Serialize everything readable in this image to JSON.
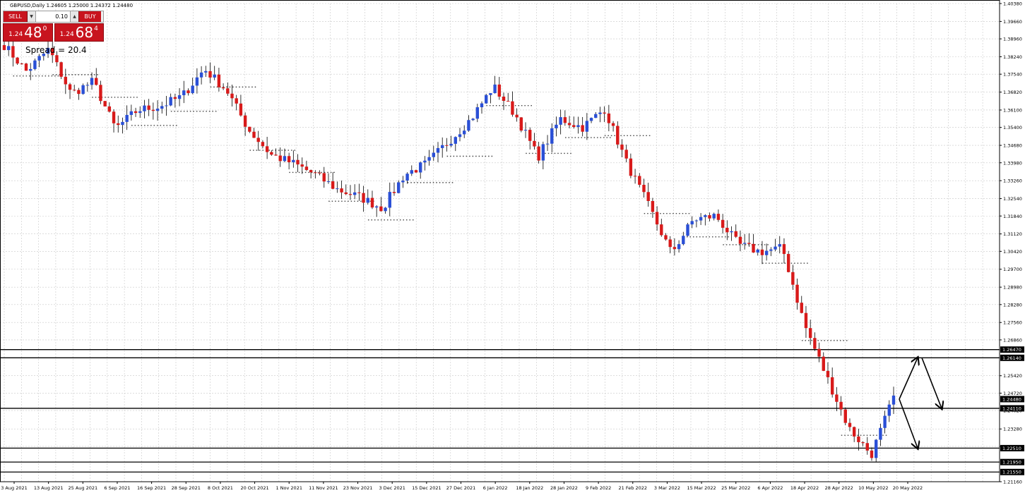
{
  "header": {
    "symbol_text": "GBPUSD,Daily",
    "ohlc_text": "1.24605 1.25000 1.24372 1.24480"
  },
  "trade_panel": {
    "sell_label": "SELL",
    "buy_label": "BUY",
    "lot_value": "0.10",
    "sell_price": {
      "prefix": "1.24",
      "big": "48",
      "sup": "0"
    },
    "buy_price": {
      "prefix": "1.24",
      "big": "68",
      "sup": "4"
    },
    "spread_text": "Spread = 20.4"
  },
  "colors": {
    "bull": "#2a4fd6",
    "bear": "#d81a1a",
    "grid": "#c8c8c8",
    "level_line": "#000000",
    "background": "#ffffff",
    "panel_red": "#c8141e"
  },
  "chart_data": {
    "type": "candlestick",
    "symbol": "GBPUSD",
    "timeframe": "Daily",
    "ylim": [
      1.2116,
      1.4038
    ],
    "y_ticks": [
      "1.40380",
      "1.39660",
      "1.38960",
      "1.38240",
      "1.37540",
      "1.36820",
      "1.36100",
      "1.35400",
      "1.34680",
      "1.33980",
      "1.33260",
      "1.32540",
      "1.31840",
      "1.31120",
      "1.30420",
      "1.29700",
      "1.28980",
      "1.28280",
      "1.27560",
      "1.26860",
      "1.25420",
      "1.24720",
      "1.24020",
      "1.23280",
      "1.22580",
      "1.21160"
    ],
    "x_ticks": [
      "3 Aug 2021",
      "13 Aug 2021",
      "25 Aug 2021",
      "6 Sep 2021",
      "16 Sep 2021",
      "28 Sep 2021",
      "8 Oct 2021",
      "20 Oct 2021",
      "1 Nov 2021",
      "11 Nov 2021",
      "23 Nov 2021",
      "3 Dec 2021",
      "15 Dec 2021",
      "27 Dec 2021",
      "6 Jan 2022",
      "18 Jan 2022",
      "28 Jan 2022",
      "9 Feb 2022",
      "21 Feb 2022",
      "3 Mar 2022",
      "15 Mar 2022",
      "25 Mar 2022",
      "6 Apr 2022",
      "18 Apr 2022",
      "28 Apr 2022",
      "10 May 2022",
      "20 May 2022"
    ],
    "price_labels": [
      {
        "value": 1.2647,
        "text": "1.26470"
      },
      {
        "value": 1.2614,
        "text": "1.26140"
      },
      {
        "value": 1.2448,
        "text": "1.24480"
      },
      {
        "value": 1.2411,
        "text": "1.24110"
      },
      {
        "value": 1.2251,
        "text": "1.22510"
      },
      {
        "value": 1.2195,
        "text": "1.21950"
      },
      {
        "value": 1.2155,
        "text": "1.21550"
      }
    ],
    "horizontal_levels": [
      1.2647,
      1.2614,
      1.2411,
      1.2251,
      1.2195,
      1.2155
    ],
    "key_points": [
      [
        1.3885,
        1.3857
      ],
      [
        1.383,
        1.37
      ],
      [
        1.391,
        1.38
      ],
      [
        1.379,
        1.356
      ],
      [
        1.386,
        1.359
      ],
      [
        1.365,
        1.342
      ],
      [
        1.376,
        1.346
      ],
      [
        1.369,
        1.356
      ],
      [
        1.37,
        1.363
      ],
      [
        1.382,
        1.373
      ],
      [
        1.376,
        1.362
      ],
      [
        1.364,
        1.342
      ],
      [
        1.34,
        1.346
      ],
      [
        1.343,
        1.336
      ],
      [
        1.332,
        1.338
      ],
      [
        1.338,
        1.32
      ],
      [
        1.336,
        1.316
      ],
      [
        1.325,
        1.318
      ],
      [
        1.336,
        1.334
      ],
      [
        1.342,
        1.337
      ],
      [
        1.348,
        1.349
      ],
      [
        1.359,
        1.356
      ],
      [
        1.371,
        1.37
      ],
      [
        1.362,
        1.356
      ],
      [
        1.346,
        1.338
      ],
      [
        1.36,
        1.355
      ],
      [
        1.356,
        1.352
      ],
      [
        1.363,
        1.36
      ],
      [
        1.352,
        1.327
      ],
      [
        1.332,
        1.312
      ],
      [
        1.308,
        1.299
      ],
      [
        1.315,
        1.319
      ],
      [
        1.322,
        1.315
      ],
      [
        1.305,
        1.309
      ],
      [
        1.308,
        1.3
      ],
      [
        1.312,
        1.299
      ],
      [
        1.284,
        1.265
      ],
      [
        1.245,
        1.262
      ],
      [
        1.241,
        1.225
      ],
      [
        1.217,
        1.228
      ],
      [
        1.247,
        1.244
      ]
    ],
    "arrows": [
      {
        "from": [
          1.2448,
          1.2448
        ],
        "to": [
          1.2614,
          1.2614
        ]
      },
      {
        "from": [
          1.2614,
          1.2614
        ],
        "to": [
          1.2411,
          1.2411
        ]
      },
      {
        "from": [
          1.2448,
          1.2448
        ],
        "to": [
          1.2251,
          1.2251
        ]
      }
    ]
  }
}
